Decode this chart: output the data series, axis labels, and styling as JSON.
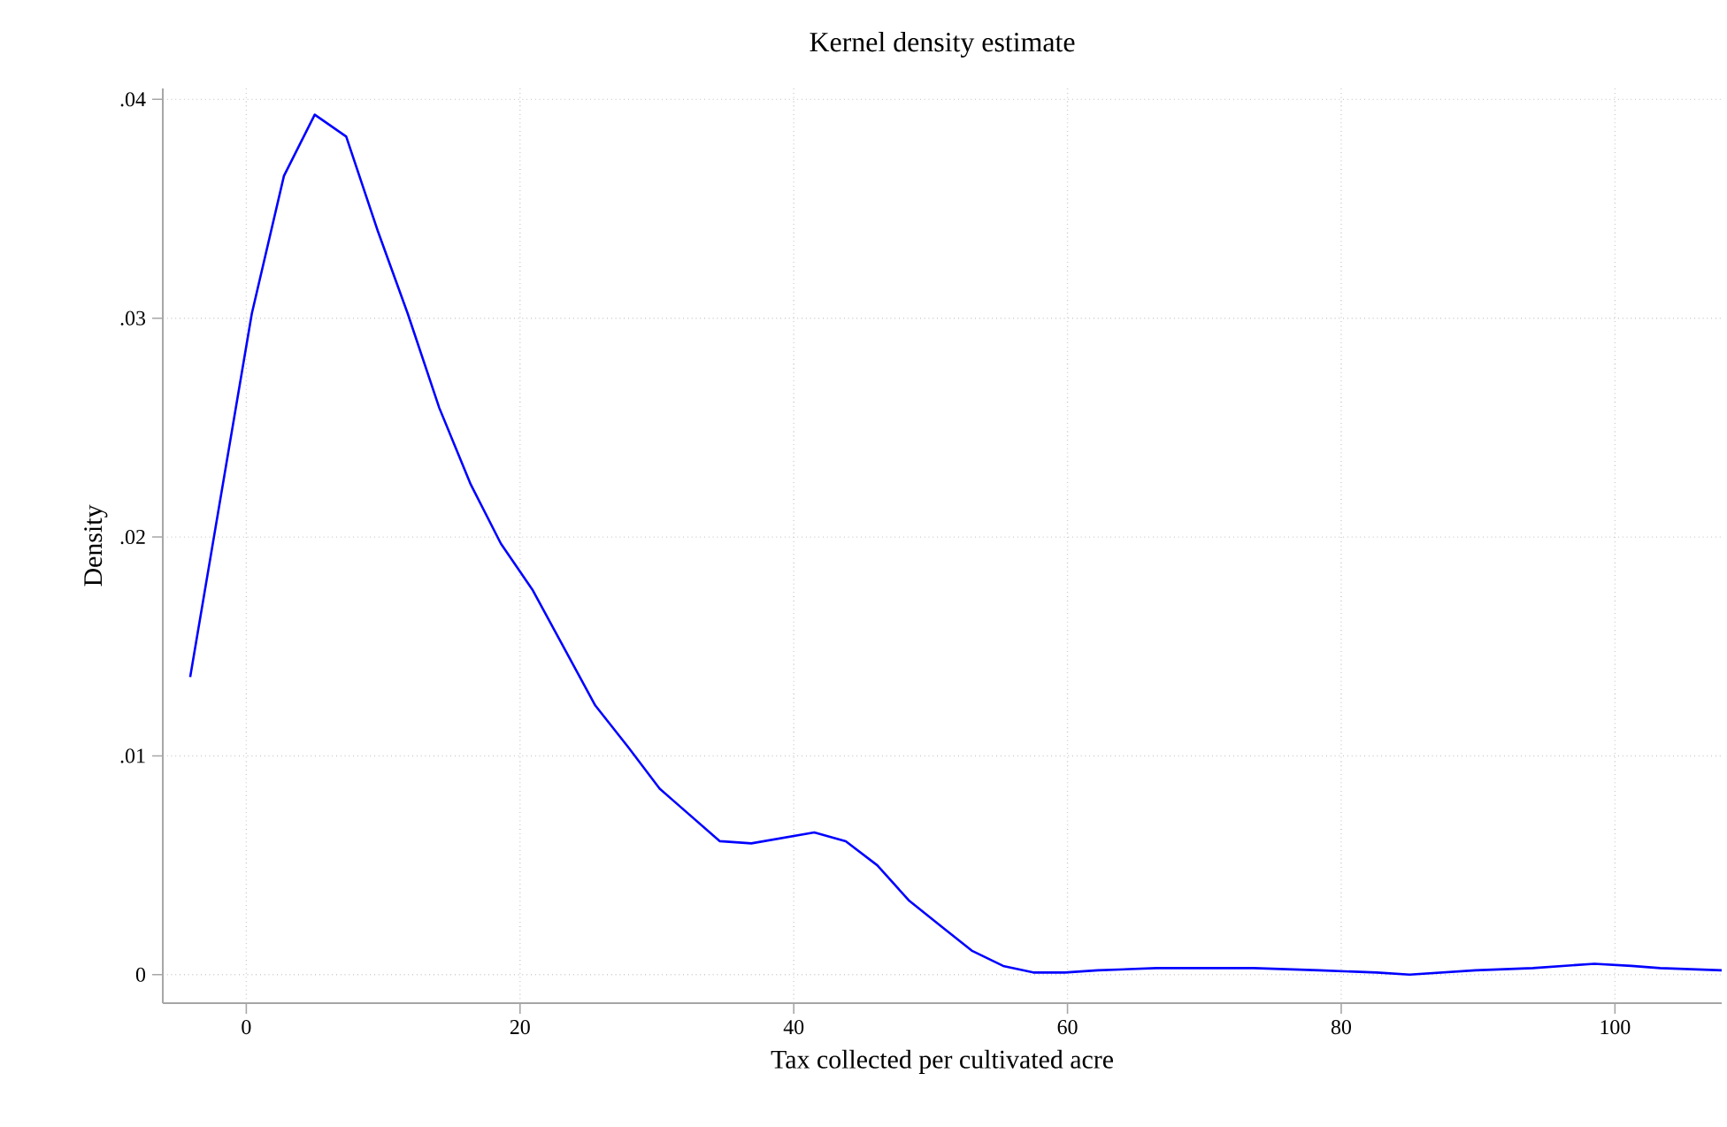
{
  "chart_data": {
    "type": "line",
    "title": "Kernel density estimate",
    "xlabel": "Tax collected per cultivated acre",
    "ylabel": "Density",
    "x": [
      -4.1,
      0.4,
      2.75,
      5.0,
      7.3,
      9.6,
      11.8,
      14.1,
      16.4,
      18.6,
      20.9,
      25.5,
      27.9,
      30.2,
      34.6,
      36.9,
      41.5,
      43.8,
      46.1,
      48.4,
      50.8,
      53.0,
      55.3,
      57.5,
      59.8,
      62.2,
      66.5,
      71.2,
      73.6,
      78.4,
      82.6,
      85.0,
      89.8,
      94.0,
      98.5,
      101.2,
      103.3,
      107.8
    ],
    "series": [
      {
        "color": "#0000ff",
        "values": [
          0.0136,
          0.0302,
          0.0365,
          0.0393,
          0.0383,
          0.034,
          0.0302,
          0.0259,
          0.0224,
          0.0197,
          0.0176,
          0.0123,
          0.0104,
          0.0085,
          0.0061,
          0.006,
          0.0065,
          0.0061,
          0.005,
          0.0034,
          0.0022,
          0.0011,
          0.0004,
          0.0001,
          0.0001,
          0.0002,
          0.0003,
          0.0003,
          0.0003,
          0.0002,
          0.0001,
          0.0,
          0.0002,
          0.0003,
          0.0005,
          0.0004,
          0.0003,
          0.0002
        ]
      }
    ],
    "xlim": [
      -6.1,
      107.8
    ],
    "ylim": [
      -0.0013,
      0.0405
    ],
    "xticks": [
      0,
      20,
      40,
      60,
      80,
      100
    ],
    "yticks": [
      {
        "value": 0,
        "label": "0"
      },
      {
        "value": 0.01,
        "label": ".01"
      },
      {
        "value": 0.02,
        "label": ".02"
      },
      {
        "value": 0.03,
        "label": ".03"
      },
      {
        "value": 0.04,
        "label": ".04"
      }
    ],
    "grid": true,
    "line_style": "solid",
    "marker": "none"
  }
}
